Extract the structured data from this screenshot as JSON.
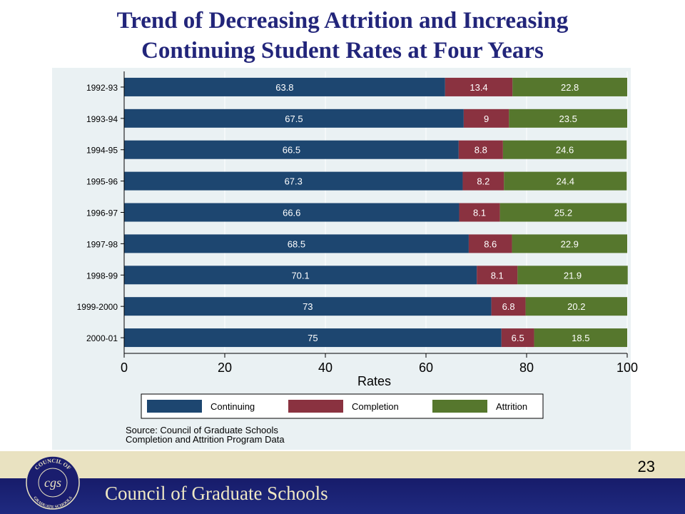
{
  "slide": {
    "title_line1": "Trend of Decreasing Attrition and Increasing",
    "title_line2": "Continuing Student Rates at Four Years",
    "source_line1": "Source: Council of Graduate Schools",
    "source_line2": "Completion and Attrition Program Data",
    "page_number": "23",
    "org_name": "Council of Graduate Schools",
    "seal_text_top": "COUNCIL OF",
    "seal_text_bottom": "GRADUATE SCHOOLS",
    "seal_monogram": "cgs"
  },
  "colors": {
    "title": "#22257a",
    "continuing": "#1d4670",
    "completion": "#8a3240",
    "attrition": "#56772d",
    "panel": "#eaf1f3",
    "footer_band": "#e9e2c1",
    "footer": "#1a1d6e"
  },
  "chart_data": {
    "type": "bar",
    "orientation": "horizontal",
    "stacked": true,
    "categories": [
      "1992-93",
      "1993-94",
      "1994-95",
      "1995-96",
      "1996-97",
      "1997-98",
      "1998-99",
      "1999-2000",
      "2000-01"
    ],
    "series": [
      {
        "name": "Continuing",
        "values": [
          63.8,
          67.5,
          66.5,
          67.3,
          66.6,
          68.5,
          70.1,
          73,
          75
        ]
      },
      {
        "name": "Completion",
        "values": [
          13.4,
          9,
          8.8,
          8.2,
          8.1,
          8.6,
          8.1,
          6.8,
          6.5
        ]
      },
      {
        "name": "Attrition",
        "values": [
          22.8,
          23.5,
          24.6,
          24.4,
          25.2,
          22.9,
          21.9,
          20.2,
          18.5
        ]
      }
    ],
    "xlabel": "Rates",
    "ylabel": "",
    "xlim": [
      0,
      100
    ],
    "xticks": [
      0,
      20,
      40,
      60,
      80,
      100
    ],
    "grid": true,
    "legend_position": "bottom"
  }
}
